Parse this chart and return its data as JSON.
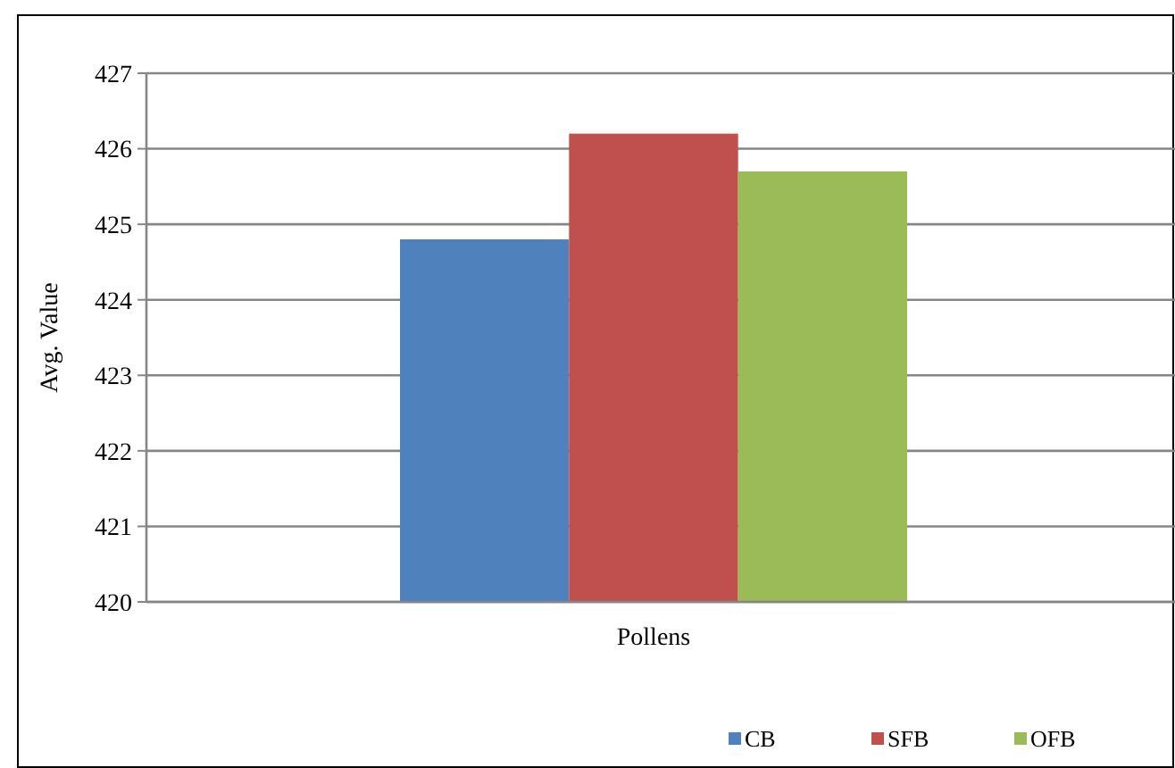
{
  "chart_data": {
    "type": "bar",
    "categories": [
      "Pollens"
    ],
    "ylabel": "Avg. Value",
    "series": [
      {
        "name": "CB",
        "color": "#4f81bd",
        "values": [
          424.8
        ]
      },
      {
        "name": "SFB",
        "color": "#c0504d",
        "values": [
          426.2
        ]
      },
      {
        "name": "OFB",
        "color": "#9bbb59",
        "values": [
          425.7
        ]
      }
    ],
    "ylim": [
      420,
      427
    ],
    "yticks": [
      420,
      421,
      422,
      423,
      424,
      425,
      426,
      427
    ],
    "grid": "y",
    "legend": "bottom right"
  }
}
